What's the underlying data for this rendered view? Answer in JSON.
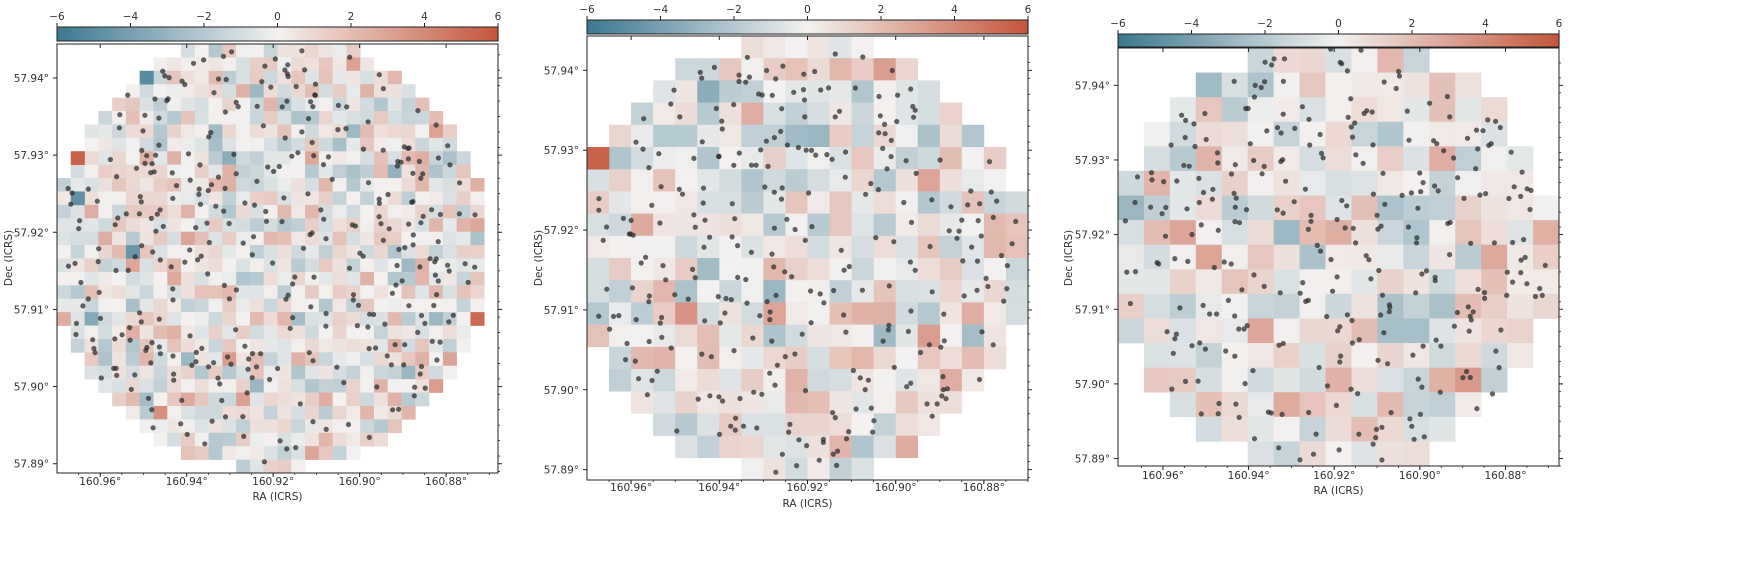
{
  "colors": {
    "cmap_low": "#3b7890",
    "cmap_mid": "#f3f1f0",
    "cmap_high": "#c4553b",
    "points": "#2a2a2a",
    "axis": "#222222"
  },
  "chart_data": [
    {
      "type": "heatmap",
      "title": "",
      "xlabel": "RA (ICRS)",
      "ylabel": "Dec (ICRS)",
      "xticks": [
        "160.96°",
        "160.94°",
        "160.92°",
        "160.90°",
        "160.88°"
      ],
      "yticks": [
        "57.94°",
        "57.93°",
        "57.92°",
        "57.91°",
        "57.90°",
        "57.89°"
      ],
      "xlim": [
        160.97,
        160.868
      ],
      "ylim": [
        57.8888,
        57.9444
      ],
      "colorbar": {
        "location": "top",
        "range": [
          -6,
          6
        ],
        "ticks": [
          "−6",
          "−4",
          "−2",
          "0",
          "2",
          "4",
          "6"
        ]
      },
      "grid": {
        "columns": 32,
        "rows": 32,
        "footprint": "circle",
        "value_scale": "±6 (estimated, mostly within ±2.5)"
      },
      "highlighted_cells": [
        {
          "ra": 160.965,
          "dec": 57.9295,
          "value": 5.5
        },
        {
          "ra": 160.965,
          "dec": 57.9245,
          "value": -4.8
        },
        {
          "ra": 160.948,
          "dec": 57.9405,
          "value": -5.0
        },
        {
          "ra": 160.954,
          "dec": 57.9175,
          "value": -4.5
        },
        {
          "ra": 160.874,
          "dec": 57.9095,
          "value": 5.2
        }
      ],
      "points": {
        "count": 340,
        "description": "overlaid source positions"
      }
    },
    {
      "type": "heatmap",
      "title": "",
      "xlabel": "RA (ICRS)",
      "ylabel": "Dec (ICRS)",
      "xticks": [
        "160.96°",
        "160.94°",
        "160.92°",
        "160.90°",
        "160.88°"
      ],
      "yticks": [
        "57.94°",
        "57.93°",
        "57.92°",
        "57.91°",
        "57.90°",
        "57.89°"
      ],
      "xlim": [
        160.97,
        160.87
      ],
      "ylim": [
        57.8887,
        57.9443
      ],
      "colorbar": {
        "location": "top",
        "range": [
          -6,
          6
        ],
        "ticks": [
          "−6",
          "−4",
          "−2",
          "0",
          "2",
          "4",
          "6"
        ]
      },
      "grid": {
        "columns": 20,
        "rows": 20,
        "footprint": "circle",
        "value_scale": "±6 (estimated, mostly within ±2.5)"
      },
      "highlighted_cells": [
        {
          "ra": 160.965,
          "dec": 57.9295,
          "value": 5.5
        },
        {
          "ra": 160.925,
          "dec": 57.9105,
          "value": 3.0
        },
        {
          "ra": 160.893,
          "dec": 57.9055,
          "value": 3.2
        }
      ],
      "points": {
        "count": 290,
        "description": "overlaid source positions"
      }
    },
    {
      "type": "heatmap",
      "title": "",
      "xlabel": "RA (ICRS)",
      "ylabel": "Dec (ICRS)",
      "xticks": [
        "160.96°",
        "160.94°",
        "160.92°",
        "160.90°",
        "160.88°"
      ],
      "yticks": [
        "57.94°",
        "57.93°",
        "57.92°",
        "57.91°",
        "57.90°",
        "57.89°"
      ],
      "xlim": [
        160.9705,
        160.8675
      ],
      "ylim": [
        57.889,
        57.945
      ],
      "colorbar": {
        "location": "top",
        "range": [
          -6,
          6
        ],
        "ticks": [
          "−6",
          "−4",
          "−2",
          "0",
          "2",
          "4",
          "6"
        ]
      },
      "grid": {
        "columns": 17,
        "rows": 17,
        "footprint": "circle",
        "value_scale": "±6 (estimated, mostly within ±2.5)"
      },
      "highlighted_cells": [],
      "points": {
        "count": 300,
        "description": "overlaid source positions"
      }
    }
  ]
}
